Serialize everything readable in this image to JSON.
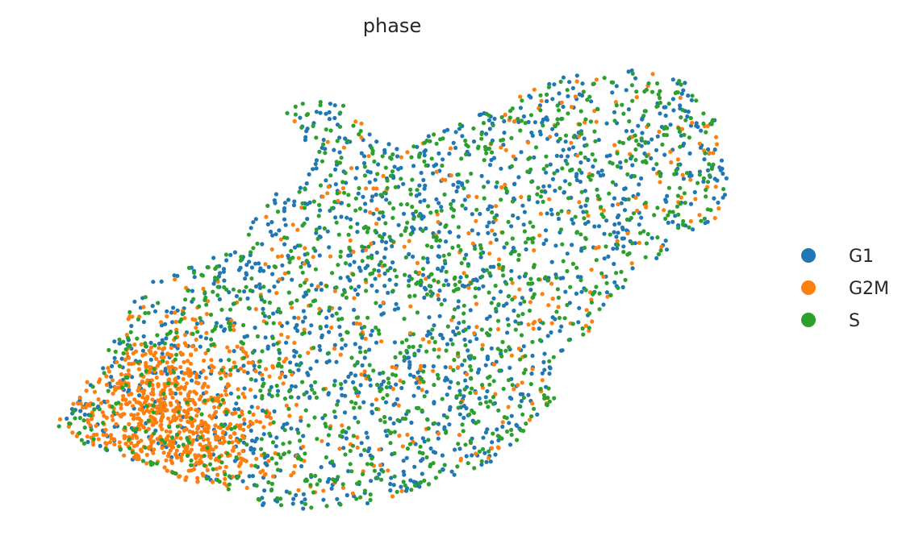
{
  "chart_data": {
    "type": "scatter",
    "title": "phase",
    "xlabel": "",
    "ylabel": "",
    "axes_visible": false,
    "grid": false,
    "legend_position": "right",
    "xlim": [
      0,
      1
    ],
    "ylim": [
      0,
      1
    ],
    "series": [
      {
        "name": "G1",
        "color": "#1f77b4"
      },
      {
        "name": "G2M",
        "color": "#ff7f0e"
      },
      {
        "name": "S",
        "color": "#2ca02c"
      }
    ],
    "points_per_series": [
      1400,
      1100,
      1200
    ],
    "random_seed": 7
  }
}
